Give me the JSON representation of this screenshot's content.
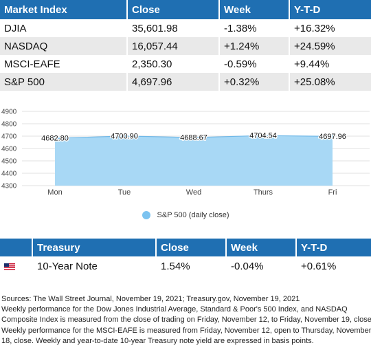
{
  "market_table": {
    "headers": [
      "Market Index",
      "Close",
      "Week",
      "Y-T-D"
    ],
    "rows": [
      [
        "DJIA",
        "35,601.98",
        "-1.38%",
        "+16.32%"
      ],
      [
        "NASDAQ",
        "16,057.44",
        "+1.24%",
        "+24.59%"
      ],
      [
        "MSCI-EAFE",
        "2,350.30",
        "-0.59%",
        "+9.44%"
      ],
      [
        "S&P 500",
        "4,697.96",
        "+0.32%",
        "+25.08%"
      ]
    ]
  },
  "chart_data": {
    "type": "area",
    "categories": [
      "Mon",
      "Tue",
      "Wed",
      "Thurs",
      "Fri"
    ],
    "series": [
      {
        "name": "S&P 500 (daily close)",
        "values": [
          4682.8,
          4700.9,
          4688.67,
          4704.54,
          4697.96
        ]
      }
    ],
    "data_labels": [
      "4682.80",
      "4700.90",
      "4688.67",
      "4704.54",
      "4697.96"
    ],
    "ylim": [
      4300,
      4900
    ],
    "yticks": [
      4300,
      4400,
      4500,
      4600,
      4700,
      4800,
      4900
    ],
    "grid": true,
    "legend": "bottom",
    "fill_color": "#a8d8f5",
    "line_color": "#6fb8e8"
  },
  "legend_label": "S&P 500 (daily close)",
  "treasury_table": {
    "headers": [
      "",
      "Treasury",
      "Close",
      "Week",
      "Y-T-D"
    ],
    "row": {
      "flag_icon": "us-flag-icon",
      "name": "10-Year Note",
      "close": "1.54%",
      "week": "-0.04%",
      "ytd": "+0.61%"
    }
  },
  "notes": [
    "Sources: The Wall Street Journal, November 19, 2021; Treasury.gov, November 19, 2021",
    "Weekly performance for the Dow Jones Industrial Average, Standard & Poor's 500 Index, and NASDAQ",
    "Composite Index is measured from the close of trading on Friday, November 12, to Friday, November 19, close.",
    "Weekly performance for the MSCI-EAFE is measured from Friday, November 12, open to Thursday, November",
    "18, close. Weekly and year-to-date 10-year Treasury note yield are expressed in basis points."
  ],
  "colors": {
    "header_blue": "#1f6fb2",
    "row_gray": "#e9e9e9"
  }
}
